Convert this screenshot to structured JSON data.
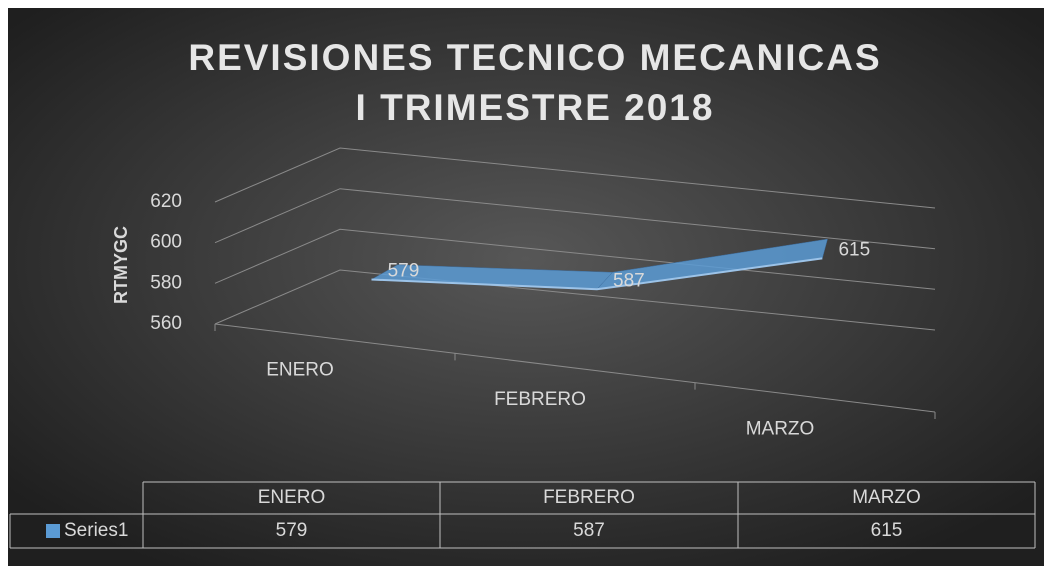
{
  "chart_data": {
    "type": "line3d",
    "title": [
      "REVISIONES TECNICO MECANICAS",
      "I TRIMESTRE 2018"
    ],
    "y_label": "RTMYGC",
    "categories": [
      "ENERO",
      "FEBRERO",
      "MARZO"
    ],
    "series": [
      {
        "name": "Series1",
        "color": "#5b9bd5",
        "values": [
          579,
          587,
          615
        ]
      }
    ],
    "ylim": [
      560,
      620
    ],
    "yticks": [
      560,
      580,
      600,
      620
    ],
    "grid": true,
    "data_table": true
  }
}
